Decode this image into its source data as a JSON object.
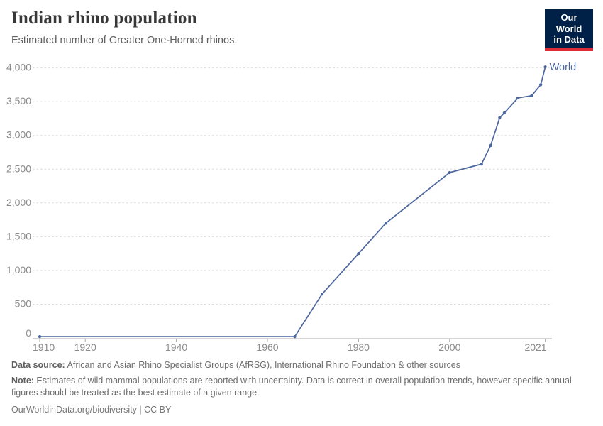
{
  "header": {
    "title": "Indian rhino population",
    "subtitle": "Estimated number of Greater One-Horned rhinos.",
    "logo": {
      "line1": "Our World",
      "line2": "in Data",
      "bg_color": "#002147",
      "accent_color": "#dc2c34"
    }
  },
  "chart_data": {
    "type": "line",
    "title": "Indian rhino population",
    "xlabel": "",
    "ylabel": "",
    "x_range": [
      1910,
      2021
    ],
    "y_range": [
      0,
      4000
    ],
    "grid": "horizontal-dashed",
    "legend_position": "end-of-line-label",
    "x_ticks": [
      1910,
      1920,
      1940,
      1960,
      1980,
      2000,
      2021
    ],
    "y_ticks": [
      0,
      500,
      1000,
      1500,
      2000,
      2500,
      3000,
      3500,
      4000
    ],
    "series": [
      {
        "name": "World",
        "color": "#4c669e",
        "points": [
          [
            1910,
            20
          ],
          [
            1966,
            20
          ],
          [
            1972,
            650
          ],
          [
            1980,
            1250
          ],
          [
            1986,
            1700
          ],
          [
            2000,
            2450
          ],
          [
            2007,
            2575
          ],
          [
            2009,
            2850
          ],
          [
            2011,
            3264
          ],
          [
            2012,
            3333
          ],
          [
            2015,
            3555
          ],
          [
            2018,
            3588
          ],
          [
            2020,
            3750
          ],
          [
            2021,
            4014
          ]
        ]
      }
    ]
  },
  "colors": {
    "gridline": "#dcdcdc",
    "axis_line": "#a8a8a8",
    "tick_label": "#8b8b8b"
  },
  "footer": {
    "source_label": "Data source:",
    "source_text": " African and Asian Rhino Specialist Groups (AfRSG), International Rhino Foundation & other sources",
    "note_label": "Note:",
    "note_text": " Estimates of wild mammal populations are reported with uncertainty. Data is correct in overall population trends, however specific annual figures should be treated as the best estimate of a given range.",
    "link": "OurWorldinData.org/biodiversity | CC BY"
  }
}
